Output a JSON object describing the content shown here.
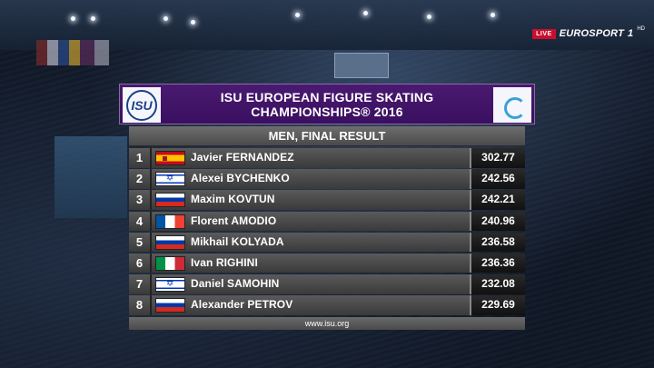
{
  "broadcaster": {
    "live_badge": "LIVE",
    "logo": "EUROSPORT",
    "channel": "1",
    "hd": "HD"
  },
  "header": {
    "title_line1": "ISU EUROPEAN FIGURE SKATING",
    "title_line2": "CHAMPIONSHIPS® 2016",
    "left_logo": "ISU",
    "right_logo_icon": "championship-logo-icon"
  },
  "subheader": "MEN, FINAL RESULT",
  "results": [
    {
      "rank": "1",
      "flag": "ESP",
      "name": "Javier FERNANDEZ",
      "score": "302.77"
    },
    {
      "rank": "2",
      "flag": "ISR",
      "name": "Alexei BYCHENKO",
      "score": "242.56"
    },
    {
      "rank": "3",
      "flag": "RUS",
      "name": "Maxim KOVTUN",
      "score": "242.21"
    },
    {
      "rank": "4",
      "flag": "FRA",
      "name": "Florent AMODIO",
      "score": "240.96"
    },
    {
      "rank": "5",
      "flag": "RUS",
      "name": "Mikhail KOLYADA",
      "score": "236.58"
    },
    {
      "rank": "6",
      "flag": "ITA",
      "name": "Ivan RIGHINI",
      "score": "236.36"
    },
    {
      "rank": "7",
      "flag": "ISR",
      "name": "Daniel SAMOHIN",
      "score": "232.08"
    },
    {
      "rank": "8",
      "flag": "RUS",
      "name": "Alexander PETROV",
      "score": "229.69"
    }
  ],
  "footer": "www.isu.org",
  "colors": {
    "header_purple": "#3a0f60",
    "live_red": "#c8102e"
  }
}
